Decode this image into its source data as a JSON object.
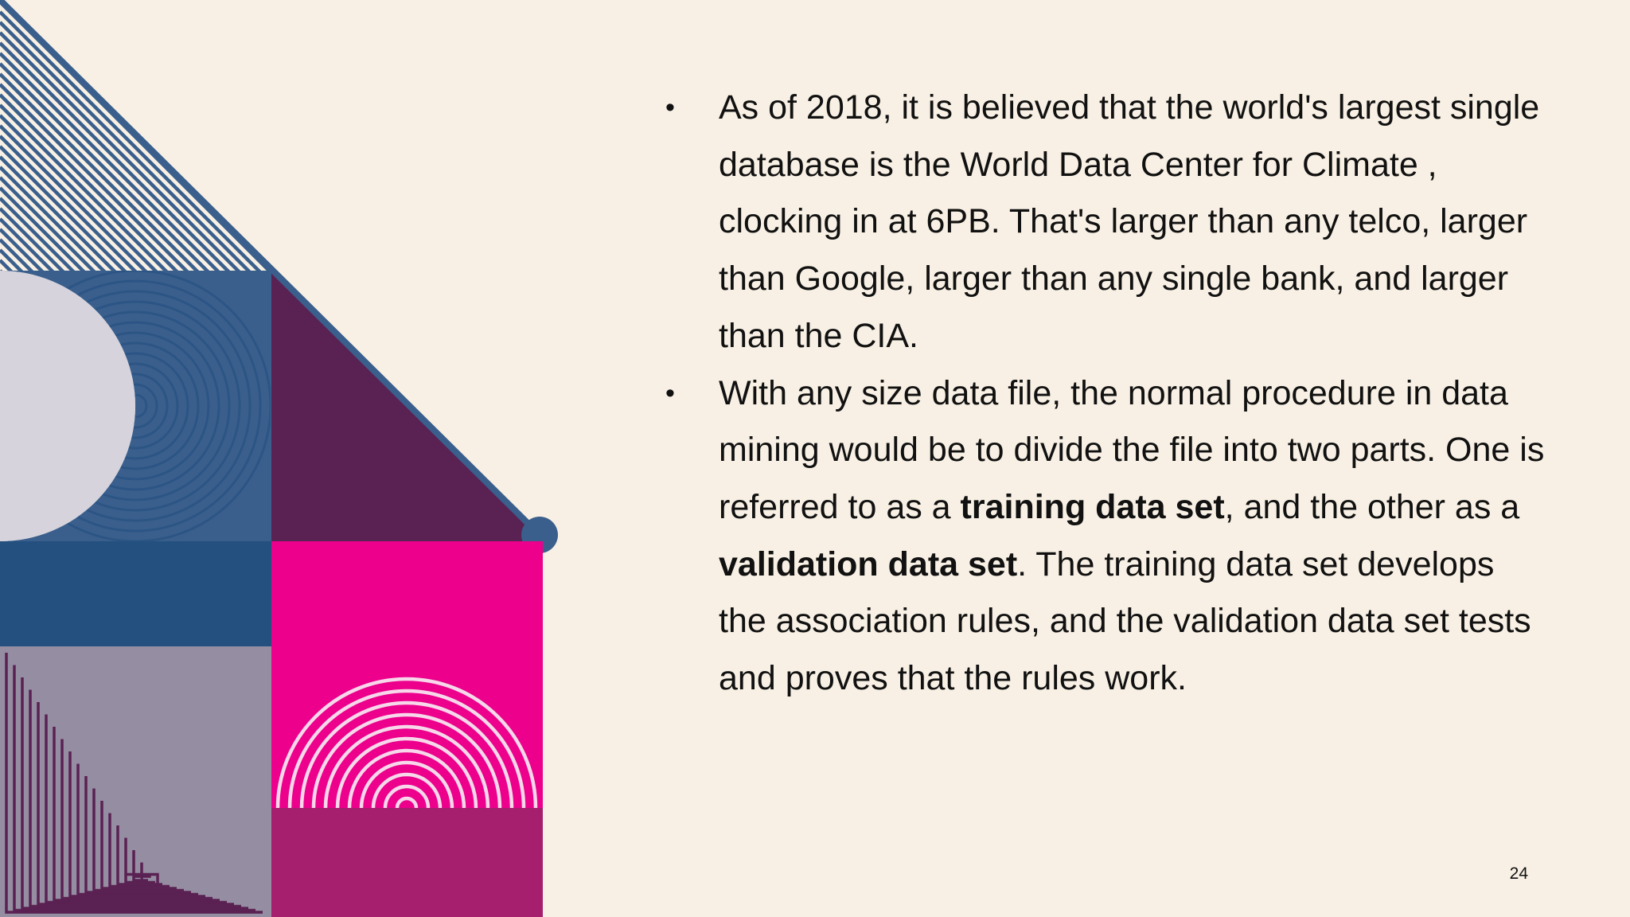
{
  "bullets": [
    {
      "parts": [
        {
          "text": "As of 2018, it is believed that the world's largest single database is the World Data Center for Climate , clocking in at 6PB. That's larger than any telco, larger than Google, larger than any single bank, and larger than the CIA."
        }
      ]
    },
    {
      "parts": [
        {
          "text": "With any size data file, the normal procedure in data mining would be to divide the file into two parts. One is referred to as a "
        },
        {
          "text": "training data set",
          "bold": true
        },
        {
          "text": ", and the other as a "
        },
        {
          "text": "validation data set",
          "bold": true
        },
        {
          "text": ". The training data set develops the association rules, and the validation data set tests and proves that the rules work."
        }
      ]
    }
  ],
  "bullet_symbol": "•",
  "page_number": "24",
  "colors": {
    "background": "#f8f0e4",
    "navy": "#3a5f8c",
    "deep_blue": "#23507e",
    "plum": "#5a2153",
    "magenta": "#ec008c",
    "berry": "#a61e6e",
    "lavender_grey": "#958ea3",
    "pale_lilac": "#d6d3dc",
    "text": "#111111"
  }
}
